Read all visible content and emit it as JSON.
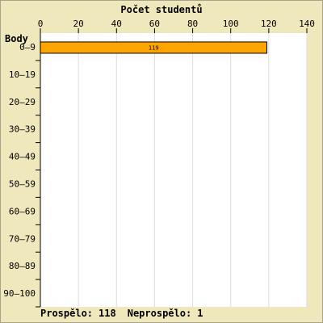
{
  "chart_data": {
    "type": "bar",
    "orientation": "horizontal",
    "title": "Počet studentů",
    "ylabel": "Body",
    "categories": [
      "0–9",
      "10–19",
      "20–29",
      "30–39",
      "40–49",
      "50–59",
      "60–69",
      "70–79",
      "80–89",
      "90–100"
    ],
    "values": [
      119,
      0,
      0,
      0,
      0,
      0,
      0,
      0,
      0,
      0
    ],
    "data_labels": [
      "119",
      "",
      "",
      "",
      "",
      "",
      "",
      "",
      "",
      ""
    ],
    "xlim": [
      0,
      140
    ],
    "xticks": [
      0,
      20,
      40,
      60,
      80,
      100,
      120,
      140
    ],
    "grid": true,
    "bar_color": "#ffa500",
    "bar_edge_color": "#000000",
    "grid_color": "#dddddd",
    "background": "#efe8bd",
    "plot_background": "#ffffff"
  },
  "footer": {
    "passed_label": "Prospělo:",
    "passed_value": "118",
    "failed_label": "Neprospělo:",
    "failed_value": "1"
  }
}
